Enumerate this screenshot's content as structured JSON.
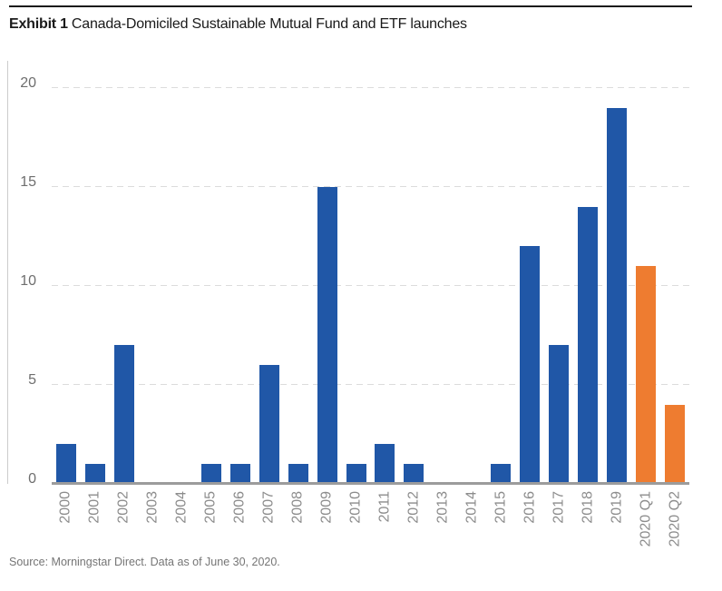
{
  "header": {
    "exhibit_label": "Exhibit 1",
    "title": "Canada-Domiciled Sustainable Mutual Fund and ETF launches"
  },
  "chart_data": {
    "type": "bar",
    "title": "Canada-Domiciled Sustainable Mutual Fund and ETF launches",
    "categories": [
      "2000",
      "2001",
      "2002",
      "2003",
      "2004",
      "2005",
      "2006",
      "2007",
      "2008",
      "2009",
      "2010",
      "2011",
      "2012",
      "2013",
      "2014",
      "2015",
      "2016",
      "2017",
      "2018",
      "2019",
      "2020 Q1",
      "2020 Q2"
    ],
    "values": [
      2,
      1,
      7,
      0,
      0,
      1,
      1,
      6,
      1,
      15,
      1,
      2,
      1,
      0,
      0,
      1,
      12,
      7,
      14,
      19,
      11,
      4
    ],
    "xlabel": "",
    "ylabel": "",
    "ylim": [
      0,
      20
    ],
    "yticks": [
      0,
      5,
      10,
      15,
      20
    ],
    "grid": "horizontal-dashed",
    "legend": "none",
    "colors": {
      "bar_default": "#2057A7",
      "bar_highlight": "#EE7C30",
      "gridline": "#dcdcdc",
      "axis_line": "#9c9c9c",
      "tick_label": "#8c8c8c"
    },
    "highlight_from_index": 20
  },
  "footer": {
    "source": "Source: Morningstar Direct. Data as of June 30, 2020."
  }
}
